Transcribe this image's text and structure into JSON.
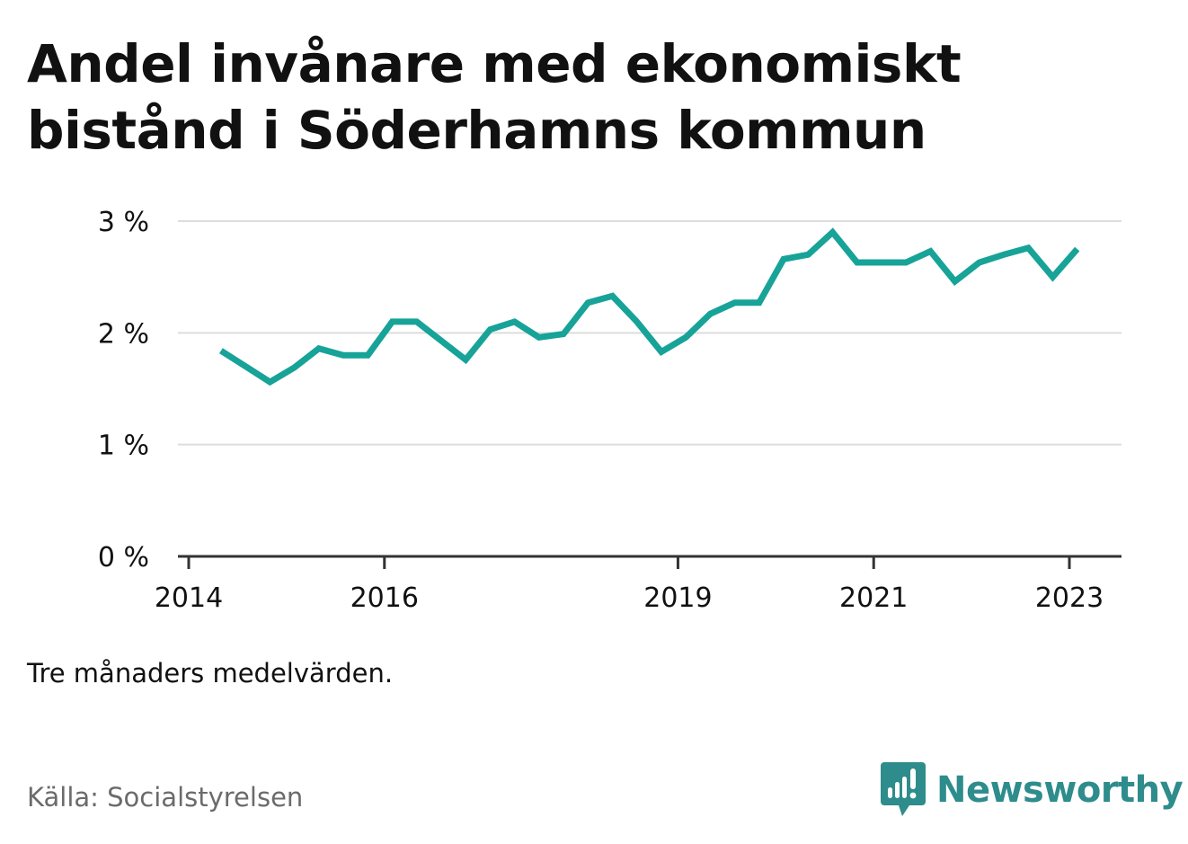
{
  "title_line1": "Andel invånare med ekonomiskt",
  "title_line2": "bistånd i Söderhamns kommun",
  "note": "Tre månaders medelvärden.",
  "source": "Källa: Socialstyrelsen",
  "logo": {
    "text": "Newsworthy",
    "icon": "newsworthy-logo-icon",
    "color": "#2e8c8c"
  },
  "colors": {
    "line": "#17a398",
    "grid": "#dddddd",
    "axis": "#333333",
    "text": "#111111",
    "muted": "#6b6b6b"
  },
  "chart_data": {
    "type": "line",
    "title": "Andel invånare med ekonomiskt bistånd i Söderhamns kommun",
    "xlabel": "",
    "ylabel": "",
    "x_ticks": [
      "2014",
      "2016",
      "2019",
      "2021",
      "2023"
    ],
    "y_ticks": [
      "0 %",
      "1 %",
      "2 %",
      "3 %"
    ],
    "ylim": [
      0,
      3
    ],
    "grid": true,
    "series": [
      {
        "values": [
          {
            "x": 2014.33,
            "y": 1.84
          },
          {
            "x": 2014.58,
            "y": 1.7
          },
          {
            "x": 2014.83,
            "y": 1.56
          },
          {
            "x": 2015.08,
            "y": 1.69
          },
          {
            "x": 2015.33,
            "y": 1.86
          },
          {
            "x": 2015.58,
            "y": 1.8
          },
          {
            "x": 2015.83,
            "y": 1.8
          },
          {
            "x": 2016.08,
            "y": 2.1
          },
          {
            "x": 2016.33,
            "y": 2.1
          },
          {
            "x": 2016.58,
            "y": 1.93
          },
          {
            "x": 2016.83,
            "y": 1.76
          },
          {
            "x": 2017.08,
            "y": 2.03
          },
          {
            "x": 2017.33,
            "y": 2.1
          },
          {
            "x": 2017.58,
            "y": 1.96
          },
          {
            "x": 2017.83,
            "y": 1.99
          },
          {
            "x": 2018.08,
            "y": 2.27
          },
          {
            "x": 2018.33,
            "y": 2.33
          },
          {
            "x": 2018.58,
            "y": 2.1
          },
          {
            "x": 2018.83,
            "y": 1.83
          },
          {
            "x": 2019.08,
            "y": 1.96
          },
          {
            "x": 2019.33,
            "y": 2.17
          },
          {
            "x": 2019.58,
            "y": 2.27
          },
          {
            "x": 2019.83,
            "y": 2.27
          },
          {
            "x": 2020.08,
            "y": 2.66
          },
          {
            "x": 2020.33,
            "y": 2.7
          },
          {
            "x": 2020.58,
            "y": 2.9
          },
          {
            "x": 2020.83,
            "y": 2.63
          },
          {
            "x": 2021.08,
            "y": 2.63
          },
          {
            "x": 2021.33,
            "y": 2.63
          },
          {
            "x": 2021.58,
            "y": 2.73
          },
          {
            "x": 2021.83,
            "y": 2.46
          },
          {
            "x": 2022.08,
            "y": 2.63
          },
          {
            "x": 2022.33,
            "y": 2.7
          },
          {
            "x": 2022.58,
            "y": 2.76
          },
          {
            "x": 2022.83,
            "y": 2.5
          },
          {
            "x": 2023.08,
            "y": 2.75
          }
        ]
      }
    ]
  }
}
